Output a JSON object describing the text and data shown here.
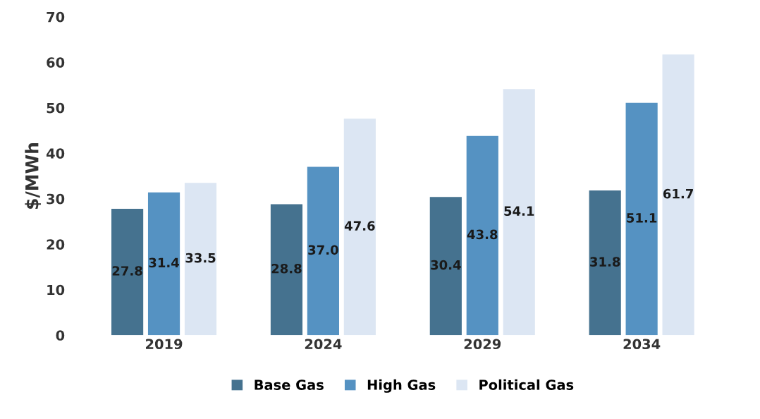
{
  "chart_data": {
    "type": "bar",
    "ylabel": "$/MWh",
    "categories": [
      "2019",
      "2024",
      "2029",
      "2034"
    ],
    "series": [
      {
        "name": "Base Gas",
        "color": "#45728f",
        "values": [
          27.8,
          28.8,
          30.4,
          31.8
        ],
        "value_labels": [
          "27.8",
          "28.8",
          "30.4",
          "31.8"
        ]
      },
      {
        "name": "High Gas",
        "color": "#5592c2",
        "values": [
          31.4,
          37.0,
          43.8,
          51.1
        ],
        "value_labels": [
          "31.4",
          "37.0",
          "43.8",
          "51.1"
        ]
      },
      {
        "name": "Political Gas",
        "color": "#dce6f3",
        "values": [
          33.5,
          47.6,
          54.1,
          61.7
        ],
        "value_labels": [
          "33.5",
          "47.6",
          "54.1",
          "61.7"
        ]
      }
    ],
    "ylim": [
      0,
      70
    ],
    "yticks": [
      0,
      10,
      20,
      30,
      40,
      50,
      60,
      70
    ],
    "grid": false,
    "legend": "bottom"
  }
}
